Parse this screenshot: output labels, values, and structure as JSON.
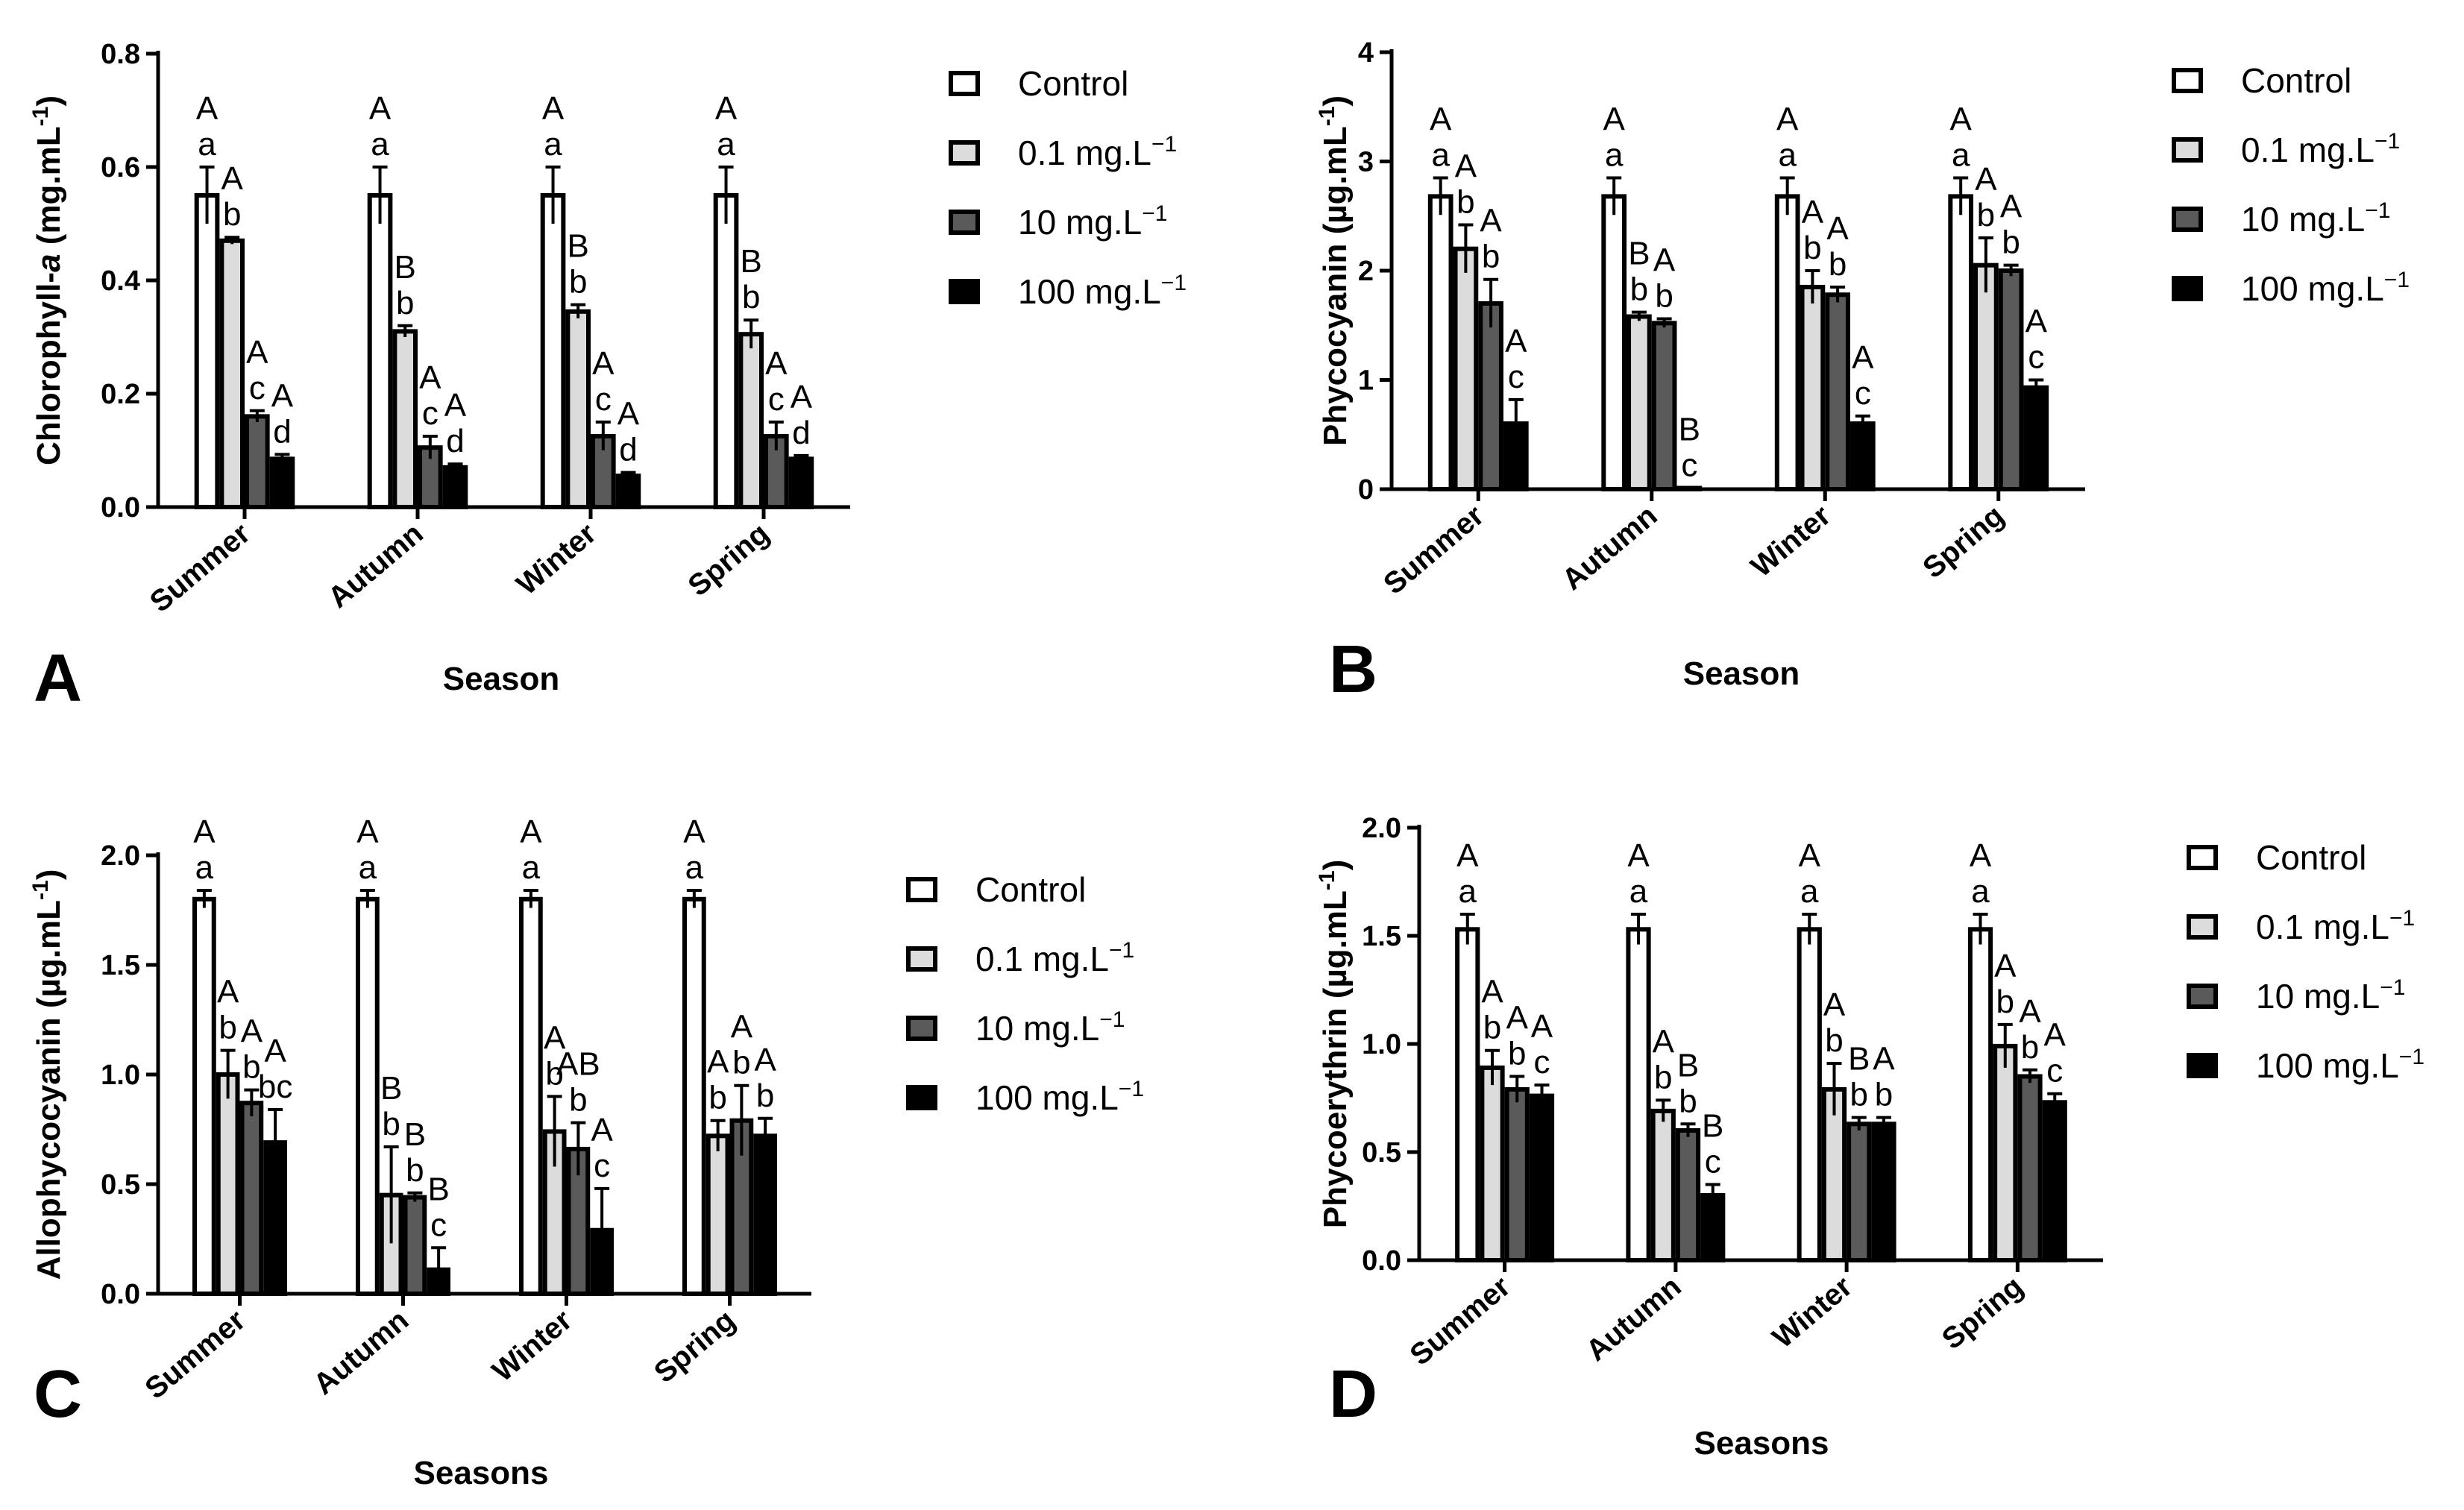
{
  "figure": {
    "legend_entries": [
      "Control",
      "0.1 mg.L",
      "10 mg.L",
      "100 mg.L"
    ],
    "legend_unit_superscript": "−1",
    "series_fills": [
      "#ffffff",
      "#dcdcdc",
      "#5a5a5a",
      "#000000"
    ]
  },
  "chart_data": [
    {
      "panel": "A",
      "type": "bar",
      "categories": [
        "Summer",
        "Autumn",
        "Winter",
        "Spring"
      ],
      "xlabel": "Season",
      "ylabel": "Chlorophyll-a (mg.mL⁻¹)",
      "ylabel_main": "Chlorophyll-",
      "ylabel_italic": "a",
      "ylabel_unit": " (mg.mL",
      "ylabel_sup": "-1",
      "ylabel_close": ")",
      "ylim": [
        0,
        0.8
      ],
      "yticks": [
        0.0,
        0.2,
        0.4,
        0.6,
        0.8
      ],
      "ytick_labels": [
        "0.0",
        "0.2",
        "0.4",
        "0.6",
        "0.8"
      ],
      "series": [
        {
          "name": "Control",
          "values": [
            0.55,
            0.55,
            0.55,
            0.55
          ],
          "errors": [
            0.05,
            0.05,
            0.05,
            0.05
          ],
          "upper_letters": [
            "A",
            "A",
            "A",
            "A"
          ],
          "lower_letters": [
            "a",
            "a",
            "a",
            "a"
          ]
        },
        {
          "name": "0.1 mg.L⁻¹",
          "values": [
            0.47,
            0.31,
            0.345,
            0.305
          ],
          "errors": [
            0.006,
            0.01,
            0.012,
            0.025
          ],
          "upper_letters": [
            "A",
            "B",
            "B",
            "B"
          ],
          "lower_letters": [
            "b",
            "b",
            "b",
            "b"
          ]
        },
        {
          "name": "10 mg.L⁻¹",
          "values": [
            0.16,
            0.105,
            0.125,
            0.125
          ],
          "errors": [
            0.01,
            0.02,
            0.025,
            0.025
          ],
          "upper_letters": [
            "A",
            "A",
            "A",
            "A"
          ],
          "lower_letters": [
            "c",
            "c",
            "c",
            "c"
          ]
        },
        {
          "name": "100 mg.L⁻¹",
          "values": [
            0.085,
            0.07,
            0.055,
            0.085
          ],
          "errors": [
            0.008,
            0.006,
            0.006,
            0.006
          ],
          "upper_letters": [
            "A",
            "A",
            "A",
            "A"
          ],
          "lower_letters": [
            "d",
            "d",
            "d",
            "d"
          ]
        }
      ]
    },
    {
      "panel": "B",
      "type": "bar",
      "categories": [
        "Summer",
        "Autumn",
        "Winter",
        "Spring"
      ],
      "xlabel": "Season",
      "ylabel": "Phycocyanin (µg.mL⁻¹)",
      "ylabel_main": "Phycocyanin (µg.mL",
      "ylabel_italic": "",
      "ylabel_unit": "",
      "ylabel_sup": "-1",
      "ylabel_close": ")",
      "ylim": [
        0,
        4
      ],
      "yticks": [
        0,
        1,
        2,
        3,
        4
      ],
      "ytick_labels": [
        "0",
        "1",
        "2",
        "3",
        "4"
      ],
      "series": [
        {
          "name": "Control",
          "values": [
            2.68,
            2.68,
            2.68,
            2.68
          ],
          "errors": [
            0.17,
            0.17,
            0.17,
            0.17
          ],
          "upper_letters": [
            "A",
            "A",
            "A",
            "A"
          ],
          "lower_letters": [
            "a",
            "a",
            "a",
            "a"
          ]
        },
        {
          "name": "0.1 mg.L⁻¹",
          "values": [
            2.2,
            1.58,
            1.85,
            2.05
          ],
          "errors": [
            0.22,
            0.04,
            0.15,
            0.25
          ],
          "upper_letters": [
            "A",
            "B",
            "A",
            "A"
          ],
          "lower_letters": [
            "b",
            "b",
            "b",
            "b"
          ]
        },
        {
          "name": "10 mg.L⁻¹",
          "values": [
            1.7,
            1.52,
            1.78,
            2.0
          ],
          "errors": [
            0.22,
            0.04,
            0.07,
            0.05
          ],
          "upper_letters": [
            "A",
            "A",
            "A",
            "A"
          ],
          "lower_letters": [
            "b",
            "b",
            "b",
            "b"
          ]
        },
        {
          "name": "100 mg.L⁻¹",
          "values": [
            0.6,
            0.01,
            0.6,
            0.93
          ],
          "errors": [
            0.22,
            0.0,
            0.07,
            0.07
          ],
          "upper_letters": [
            "A",
            "B",
            "A",
            "A"
          ],
          "lower_letters": [
            "c",
            "c",
            "c",
            "c"
          ]
        }
      ]
    },
    {
      "panel": "C",
      "type": "bar",
      "categories": [
        "Summer",
        "Autumn",
        "Winter",
        "Spring"
      ],
      "xlabel": "Seasons",
      "ylabel": "Allophycocyanin (µg.mL⁻¹)",
      "ylabel_main": "Allophycocyanin (µg.mL",
      "ylabel_italic": "",
      "ylabel_unit": "",
      "ylabel_sup": "-1",
      "ylabel_close": ")",
      "ylim": [
        0,
        2.0
      ],
      "yticks": [
        0.0,
        0.5,
        1.0,
        1.5,
        2.0
      ],
      "ytick_labels": [
        "0.0",
        "0.5",
        "1.0",
        "1.5",
        "2.0"
      ],
      "series": [
        {
          "name": "Control",
          "values": [
            1.8,
            1.8,
            1.8,
            1.8
          ],
          "errors": [
            0.04,
            0.04,
            0.04,
            0.04
          ],
          "upper_letters": [
            "A",
            "A",
            "A",
            "A"
          ],
          "lower_letters": [
            "a",
            "a",
            "a",
            "a"
          ]
        },
        {
          "name": "0.1 mg.L⁻¹",
          "values": [
            1.0,
            0.45,
            0.74,
            0.72
          ],
          "errors": [
            0.11,
            0.22,
            0.16,
            0.07
          ],
          "upper_letters": [
            "A",
            "B",
            "A",
            "A"
          ],
          "lower_letters": [
            "b",
            "b",
            "b",
            "b"
          ]
        },
        {
          "name": "10 mg.L⁻¹",
          "values": [
            0.87,
            0.44,
            0.66,
            0.79
          ],
          "errors": [
            0.06,
            0.02,
            0.12,
            0.16
          ],
          "upper_letters": [
            "A",
            "B",
            "AB",
            "A"
          ],
          "lower_letters": [
            "b",
            "b",
            "b",
            "b"
          ]
        },
        {
          "name": "100 mg.L⁻¹",
          "values": [
            0.69,
            0.11,
            0.29,
            0.72
          ],
          "errors": [
            0.15,
            0.1,
            0.19,
            0.08
          ],
          "upper_letters": [
            "A",
            "B",
            "A",
            "A"
          ],
          "lower_letters": [
            "bc",
            "c",
            "c",
            "b"
          ]
        }
      ]
    },
    {
      "panel": "D",
      "type": "bar",
      "categories": [
        "Summer",
        "Autumn",
        "Winter",
        "Spring"
      ],
      "xlabel": "Seasons",
      "ylabel": "Phycoerythrin (µg.mL⁻¹)",
      "ylabel_main": "Phycoerythrin (µg.mL",
      "ylabel_italic": "",
      "ylabel_unit": "",
      "ylabel_sup": "-1",
      "ylabel_close": ")",
      "ylim": [
        0,
        2.0
      ],
      "yticks": [
        0.0,
        0.5,
        1.0,
        1.5,
        2.0
      ],
      "ytick_labels": [
        "0.0",
        "0.5",
        "1.0",
        "1.5",
        "2.0"
      ],
      "series": [
        {
          "name": "Control",
          "values": [
            1.53,
            1.53,
            1.53,
            1.53
          ],
          "errors": [
            0.07,
            0.07,
            0.07,
            0.07
          ],
          "upper_letters": [
            "A",
            "A",
            "A",
            "A"
          ],
          "lower_letters": [
            "a",
            "a",
            "a",
            "a"
          ]
        },
        {
          "name": "0.1 mg.L⁻¹",
          "values": [
            0.89,
            0.69,
            0.79,
            0.99
          ],
          "errors": [
            0.08,
            0.05,
            0.12,
            0.1
          ],
          "upper_letters": [
            "A",
            "A",
            "A",
            "A"
          ],
          "lower_letters": [
            "b",
            "b",
            "b",
            "b"
          ]
        },
        {
          "name": "10 mg.L⁻¹",
          "values": [
            0.79,
            0.6,
            0.63,
            0.85
          ],
          "errors": [
            0.06,
            0.03,
            0.03,
            0.03
          ],
          "upper_letters": [
            "A",
            "B",
            "B",
            "A"
          ],
          "lower_letters": [
            "b",
            "b",
            "b",
            "b"
          ]
        },
        {
          "name": "100 mg.L⁻¹",
          "values": [
            0.76,
            0.3,
            0.63,
            0.73
          ],
          "errors": [
            0.05,
            0.05,
            0.03,
            0.04
          ],
          "upper_letters": [
            "A",
            "B",
            "A",
            "A"
          ],
          "lower_letters": [
            "c",
            "c",
            "b",
            "c"
          ]
        }
      ]
    }
  ]
}
